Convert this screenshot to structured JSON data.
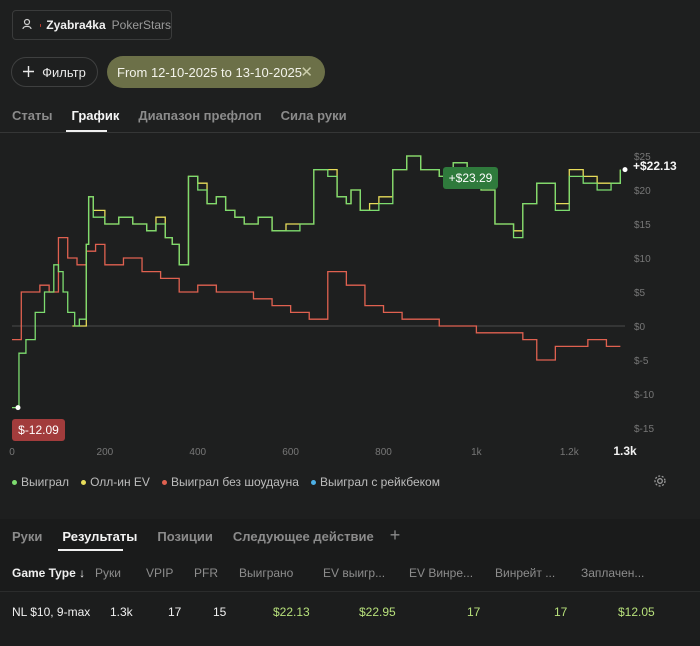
{
  "player": {
    "name": "Zyabra4ka",
    "site": "PokerStars"
  },
  "filter": {
    "label": "Фильтр",
    "date_range": "From 12-10-2025 to 13-10-2025"
  },
  "tabs": [
    {
      "label": "Статы",
      "active": false
    },
    {
      "label": "График",
      "active": true
    },
    {
      "label": "Диапазон префлоп",
      "active": false
    },
    {
      "label": "Сила руки",
      "active": false
    }
  ],
  "chart_data": {
    "type": "line",
    "x_ticks": [
      "0",
      "200",
      "400",
      "600",
      "800",
      "1k",
      "1.2k"
    ],
    "x_end_label": "1.3k",
    "y_ticks": [
      "$25",
      "$20",
      "$15",
      "$10",
      "$5",
      "$0",
      "$-5",
      "$-10",
      "$-15"
    ],
    "ylim": [
      -15,
      25
    ],
    "xlim": [
      0,
      1320
    ],
    "series": [
      {
        "name": "Выиграл",
        "color": "#7ddc6f",
        "x": [
          0,
          15,
          30,
          50,
          70,
          90,
          100,
          110,
          120,
          135,
          145,
          155,
          160,
          165,
          175,
          200,
          230,
          260,
          290,
          310,
          330,
          345,
          360,
          380,
          400,
          420,
          440,
          460,
          480,
          500,
          530,
          560,
          590,
          620,
          650,
          680,
          700,
          720,
          730,
          750,
          770,
          790,
          820,
          850,
          880,
          920,
          950,
          980,
          1010,
          1040,
          1080,
          1100,
          1130,
          1170,
          1200,
          1230,
          1260,
          1290,
          1310
        ],
        "y": [
          -12,
          -4,
          -2,
          2,
          5,
          9,
          8,
          5,
          2,
          0,
          1,
          1,
          12,
          19,
          16,
          15,
          16,
          15,
          14,
          15,
          13,
          12,
          9,
          22,
          20,
          18,
          19,
          17,
          16,
          15,
          16,
          14,
          14,
          15,
          23,
          22,
          19,
          18,
          20,
          17,
          17,
          18,
          23,
          25,
          23,
          22,
          24,
          21,
          20,
          15,
          13,
          18,
          21,
          17,
          22,
          21,
          20,
          21,
          23
        ]
      },
      {
        "name": "Олл-ин EV",
        "color": "#e7dc5a",
        "x": [
          130,
          160,
          165,
          175,
          200,
          230,
          260,
          290,
          310,
          330,
          345,
          360,
          380,
          400,
          420,
          440,
          460,
          480,
          500,
          530,
          560,
          590,
          620,
          650,
          680,
          700,
          720,
          730,
          750,
          770,
          790,
          820,
          850,
          880,
          920,
          950,
          980,
          1010,
          1040,
          1080,
          1100,
          1130,
          1170,
          1200,
          1230,
          1260,
          1290,
          1310
        ],
        "y": [
          0,
          12,
          19,
          17,
          15,
          16,
          15,
          14,
          16,
          13,
          12,
          9,
          22,
          21,
          18,
          19,
          17,
          16,
          15,
          16,
          14,
          15,
          15,
          23,
          23,
          19,
          18,
          20,
          17,
          18,
          19,
          23,
          25,
          23,
          22,
          24,
          22,
          20,
          15,
          14,
          18,
          21,
          18,
          23,
          22,
          21,
          21,
          23
        ]
      },
      {
        "name": "Выиграл без шоудауна",
        "color": "#e06150",
        "x": [
          0,
          20,
          40,
          60,
          80,
          100,
          120,
          140,
          160,
          180,
          200,
          240,
          280,
          320,
          360,
          400,
          440,
          480,
          520,
          560,
          600,
          640,
          680,
          720,
          760,
          800,
          840,
          880,
          920,
          960,
          1000,
          1040,
          1080,
          1100,
          1130,
          1170,
          1200,
          1240,
          1280,
          1310
        ],
        "y": [
          -2,
          5,
          5,
          6,
          5,
          13,
          10,
          9,
          11,
          12,
          9,
          10,
          8,
          7,
          5,
          6,
          5,
          5,
          4,
          3,
          2,
          1,
          8,
          6,
          3,
          2,
          1,
          1,
          0,
          0,
          -1,
          -1,
          -1,
          -2,
          -5,
          -3,
          -3,
          -2,
          -3,
          -3
        ]
      },
      {
        "name": "Выиграл с рейкбеком",
        "color": "#4db0e6",
        "x": [],
        "y": []
      }
    ],
    "callouts": [
      {
        "text": "$-12.09",
        "color": "#a23c3c"
      },
      {
        "text": "+$23.29",
        "color": "#2f7a3c"
      },
      {
        "text": "+$22.13",
        "color": "transparent"
      }
    ]
  },
  "bottom_tabs": [
    {
      "label": "Руки",
      "active": false
    },
    {
      "label": "Результаты",
      "active": true
    },
    {
      "label": "Позиции",
      "active": false
    },
    {
      "label": "Следующее действие",
      "active": false
    }
  ],
  "bottom_plus": "+",
  "table": {
    "headers": [
      "Game Type ↓",
      "Руки",
      "VPIP",
      "PFR",
      "Выиграно",
      "EV выигр...",
      "EV Винре...",
      "Винрейт ...",
      "Заплачен..."
    ],
    "rows": [
      [
        "NL $10, 9-max",
        "1.3k",
        "17",
        "15",
        "$22.13",
        "$22.95",
        "17",
        "17",
        "$12.05"
      ]
    ]
  },
  "icons": {
    "player": "user-icon",
    "filter": "plus-icon",
    "close": "close-icon",
    "settings": "gear-icon"
  }
}
